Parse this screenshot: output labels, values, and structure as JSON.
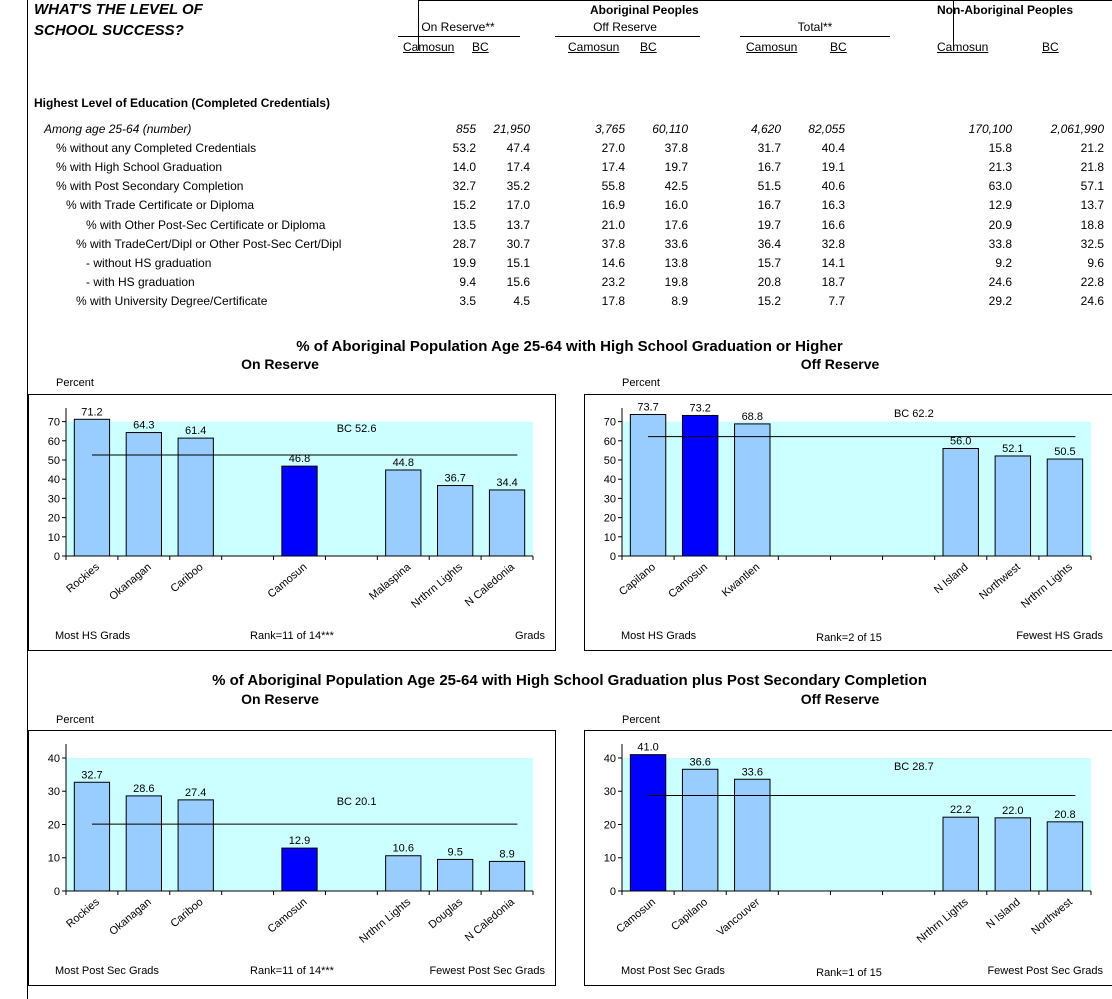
{
  "title": {
    "line1": "WHAT'S THE LEVEL OF",
    "line2": "SCHOOL SUCCESS?"
  },
  "header": {
    "aboriginal": "Aboriginal Peoples",
    "non_aboriginal": "Non-Aboriginal Peoples",
    "groups": [
      "On Reserve**",
      "Off Reserve",
      "Total**"
    ],
    "cols": [
      "Camosun",
      "BC",
      "Camosun",
      "BC",
      "Camosun",
      "BC",
      "Camosun",
      "BC"
    ]
  },
  "section_heading": "Highest Level of Education (Completed Credentials)",
  "rows": [
    {
      "label": "Among age 25-64 (number)",
      "italic": true,
      "values": [
        "855",
        "21,950",
        "3,765",
        "60,110",
        "4,620",
        "82,055",
        "170,100",
        "2,061,990"
      ]
    },
    {
      "label": "% without any Completed Credentials",
      "values": [
        "53.2",
        "47.4",
        "27.0",
        "37.8",
        "31.7",
        "40.4",
        "15.8",
        "21.2"
      ]
    },
    {
      "label": "% with High School Graduation",
      "values": [
        "14.0",
        "17.4",
        "17.4",
        "19.7",
        "16.7",
        "19.1",
        "21.3",
        "21.8"
      ]
    },
    {
      "label": "% with Post Secondary Completion",
      "values": [
        "32.7",
        "35.2",
        "55.8",
        "42.5",
        "51.5",
        "40.6",
        "63.0",
        "57.1"
      ]
    },
    {
      "label": "% with Trade Certificate or Diploma",
      "values": [
        "15.2",
        "17.0",
        "16.9",
        "16.0",
        "16.7",
        "16.3",
        "12.9",
        "13.7"
      ]
    },
    {
      "label": "% with Other Post-Sec Certificate or Diploma",
      "values": [
        "13.5",
        "13.7",
        "21.0",
        "17.6",
        "19.7",
        "16.6",
        "20.9",
        "18.8"
      ]
    },
    {
      "label": "% with TradeCert/Dipl or Other Post-Sec Cert/Dipl",
      "values": [
        "28.7",
        "30.7",
        "37.8",
        "33.6",
        "36.4",
        "32.8",
        "33.8",
        "32.5"
      ]
    },
    {
      "label": "- without HS graduation",
      "values": [
        "19.9",
        "15.1",
        "14.6",
        "13.8",
        "15.7",
        "14.1",
        "9.2",
        "9.6"
      ]
    },
    {
      "label": "- with HS graduation",
      "values": [
        "9.4",
        "15.6",
        "23.2",
        "19.8",
        "20.8",
        "18.7",
        "24.6",
        "22.8"
      ]
    },
    {
      "label": "% with University Degree/Certificate",
      "values": [
        "3.5",
        "4.5",
        "17.8",
        "8.9",
        "15.2",
        "7.7",
        "29.2",
        "24.6"
      ]
    }
  ],
  "section1": {
    "title": "% of Aboriginal Population Age 25-64 with High School Graduation or Higher",
    "left_label": "On Reserve",
    "right_label": "Off Reserve"
  },
  "section2": {
    "title": "% of Aboriginal Population Age 25-64 with High School Graduation plus Post Secondary Completion",
    "left_label": "On Reserve",
    "right_label": "Off Reserve"
  },
  "colors": {
    "plot_bg": "#ccffff",
    "bar": "#99ccff",
    "highlight": "#0000ff"
  },
  "chart_data": [
    {
      "type": "bar",
      "ylabel": "Percent",
      "ylim": [
        0,
        75
      ],
      "yticks": [
        0,
        10,
        20,
        30,
        40,
        50,
        60,
        70
      ],
      "categories": [
        "Rockies",
        "Okanagan",
        "Cariboo",
        "",
        "Camosun",
        "",
        "Malaspina",
        "Nrthrn Lights",
        "N Caledonia"
      ],
      "values": [
        71.2,
        64.3,
        61.4,
        null,
        46.8,
        null,
        44.8,
        36.7,
        34.4
      ],
      "labels": [
        "71.2",
        "64.3",
        "61.4",
        "",
        "46.8",
        "",
        "44.8",
        "36.7",
        "34.4"
      ],
      "highlight": 4,
      "reference": {
        "value": 52.6,
        "label": "BC 52.6"
      },
      "footer": {
        "left": "Most HS Grads",
        "center": "Rank=11 of 14***",
        "right": "Grads"
      }
    },
    {
      "type": "bar",
      "ylabel": "Percent",
      "ylim": [
        0,
        75
      ],
      "yticks": [
        0,
        10,
        20,
        30,
        40,
        50,
        60,
        70
      ],
      "categories": [
        "Capilano",
        "Camosun",
        "Kwantlen",
        "",
        "",
        "",
        "N Island",
        "Northwest",
        "Nrthrn Lights"
      ],
      "values": [
        73.7,
        73.2,
        68.8,
        null,
        null,
        null,
        56.0,
        52.1,
        50.5
      ],
      "labels": [
        "73.7",
        "73.2",
        "68.8",
        "",
        "",
        "",
        "56.0",
        "52.1",
        "50.5"
      ],
      "highlight": 1,
      "reference": {
        "value": 62.2,
        "label": "BC 62.2"
      },
      "footer": {
        "left": "Most HS Grads",
        "center": "Rank=2 of 15",
        "right": "Fewest HS Grads"
      }
    },
    {
      "type": "bar",
      "ylabel": "Percent",
      "ylim": [
        0,
        43
      ],
      "yticks": [
        0,
        10,
        20,
        30,
        40
      ],
      "categories": [
        "Rockies",
        "Okanagan",
        "Cariboo",
        "",
        "Camosun",
        "",
        "Nrthrn Lights",
        "Douglas",
        "N Caledonia"
      ],
      "values": [
        32.7,
        28.6,
        27.4,
        null,
        12.9,
        null,
        10.6,
        9.5,
        8.9
      ],
      "labels": [
        "32.7",
        "28.6",
        "27.4",
        "",
        "12.9",
        "",
        "10.6",
        "9.5",
        "8.9"
      ],
      "highlight": 4,
      "reference": {
        "value": 20.1,
        "label": "BC 20.1"
      },
      "footer": {
        "left": "Most Post Sec Grads",
        "center": "Rank=11 of 14***",
        "right": "Fewest Post Sec Grads"
      }
    },
    {
      "type": "bar",
      "ylabel": "Percent",
      "ylim": [
        0,
        43
      ],
      "yticks": [
        0,
        10,
        20,
        30,
        40
      ],
      "categories": [
        "Camosun",
        "Capilano",
        "Vancouver",
        "",
        "",
        "",
        "Nrthrn Lights",
        "N Island",
        "Northwest"
      ],
      "values": [
        41.0,
        36.6,
        33.6,
        null,
        null,
        null,
        22.2,
        22.0,
        20.8
      ],
      "labels": [
        "41.0",
        "36.6",
        "33.6",
        "",
        "",
        "",
        "22.2",
        "22.0",
        "20.8"
      ],
      "highlight": 0,
      "reference": {
        "value": 28.7,
        "label": "BC 28.7"
      },
      "footer": {
        "left": "Most Post Sec Grads",
        "center": "Rank=1 of 15",
        "right": "Fewest Post Sec Grads"
      }
    }
  ]
}
